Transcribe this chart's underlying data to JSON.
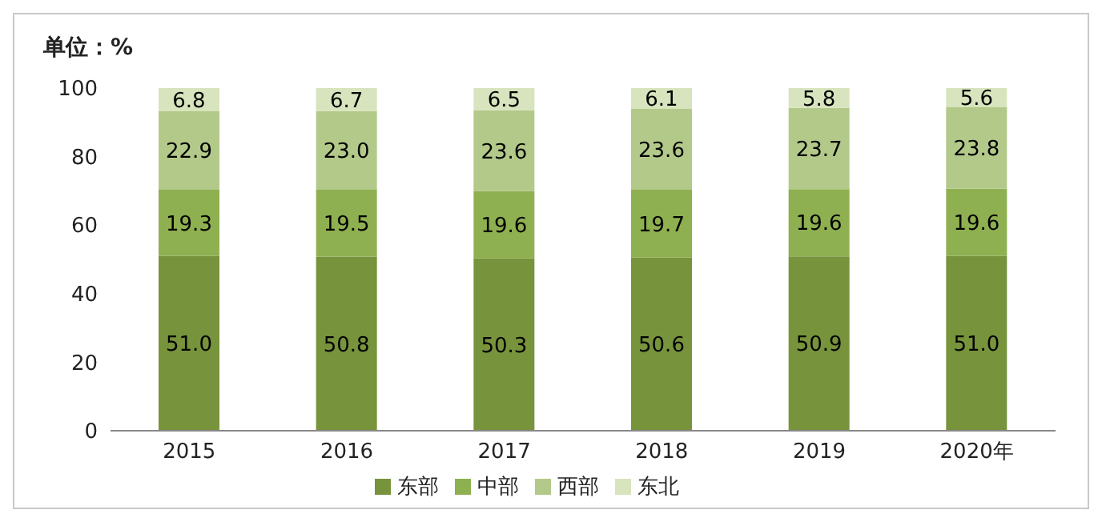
{
  "chart_data": {
    "type": "bar",
    "ylabel": "单位：%",
    "categories": [
      "2015",
      "2016",
      "2017",
      "2018",
      "2019",
      "2020年"
    ],
    "stacked": true,
    "ylim": [
      0,
      100
    ],
    "yticks": [
      0,
      20,
      40,
      60,
      80,
      100
    ],
    "grid": false,
    "legend": "bottom",
    "series": [
      {
        "name": "东部",
        "color": "#77933c",
        "values": [
          51.0,
          50.8,
          50.3,
          50.6,
          50.9,
          51.0
        ],
        "value_labels": [
          "51.0",
          "50.8",
          "50.3",
          "50.6",
          "50.9",
          "51.0"
        ]
      },
      {
        "name": "中部",
        "color": "#8fb050",
        "values": [
          19.3,
          19.5,
          19.6,
          19.7,
          19.6,
          19.6
        ],
        "value_labels": [
          "19.3",
          "19.5",
          "19.6",
          "19.7",
          "19.6",
          "19.6"
        ]
      },
      {
        "name": "西部",
        "color": "#b3c98a",
        "values": [
          22.9,
          23.0,
          23.6,
          23.6,
          23.7,
          23.8
        ],
        "value_labels": [
          "22.9",
          "23.0",
          "23.6",
          "23.6",
          "23.7",
          "23.8"
        ]
      },
      {
        "name": "东北",
        "color": "#d7e4bd",
        "values": [
          6.8,
          6.7,
          6.5,
          6.1,
          5.8,
          5.6
        ],
        "value_labels": [
          "6.8",
          "6.7",
          "6.5",
          "6.1",
          "5.8",
          "5.6"
        ]
      }
    ]
  }
}
